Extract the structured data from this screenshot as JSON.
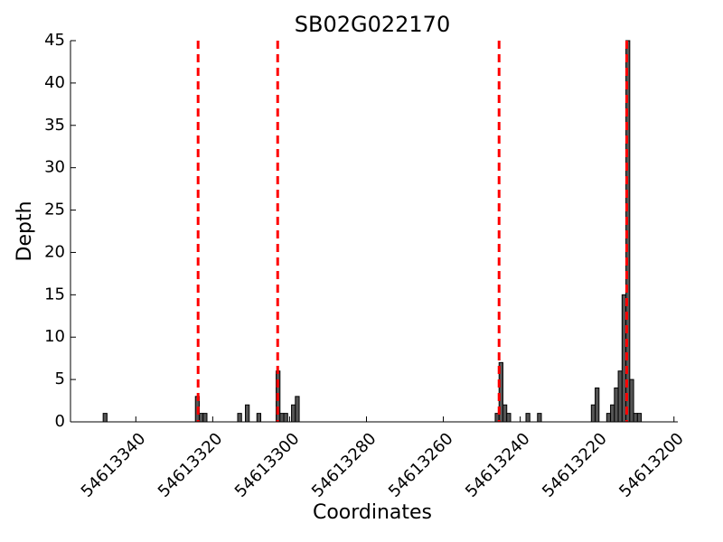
{
  "chart_data": {
    "type": "bar",
    "title": "SB02G022170",
    "x_label": "Coordinates",
    "y_label": "Depth",
    "x": [
      54613348,
      54613324,
      54613323,
      54613322,
      54613313,
      54613311,
      54613308,
      54613303,
      54613302,
      54613301,
      54613299,
      54613298,
      54613246,
      54613245,
      54613244,
      54613243,
      54613238,
      54613235,
      54613221,
      54613220,
      54613217,
      54613216,
      54613215,
      54613214,
      54613213,
      54613212,
      54613211,
      54613210,
      54613209
    ],
    "values": [
      1,
      3,
      1,
      1,
      1,
      2,
      1,
      6,
      1,
      1,
      2,
      3,
      1,
      7,
      2,
      1,
      1,
      1,
      2,
      4,
      1,
      2,
      4,
      6,
      15,
      45,
      5,
      1,
      1
    ],
    "color": "#555555",
    "vlines": [
      54613323.8,
      54613303.1,
      54613245.5,
      54613212.3
    ],
    "vline_color": "#ff0000",
    "xlim": [
      54613357,
      54613199
    ],
    "xticks": [
      54613340,
      54613320,
      54613300,
      54613280,
      54613260,
      54613240,
      54613220,
      54613200
    ],
    "ylim": [
      0,
      45
    ],
    "yticks": [
      0,
      5,
      10,
      15,
      20,
      25,
      30,
      35,
      40,
      45
    ]
  }
}
